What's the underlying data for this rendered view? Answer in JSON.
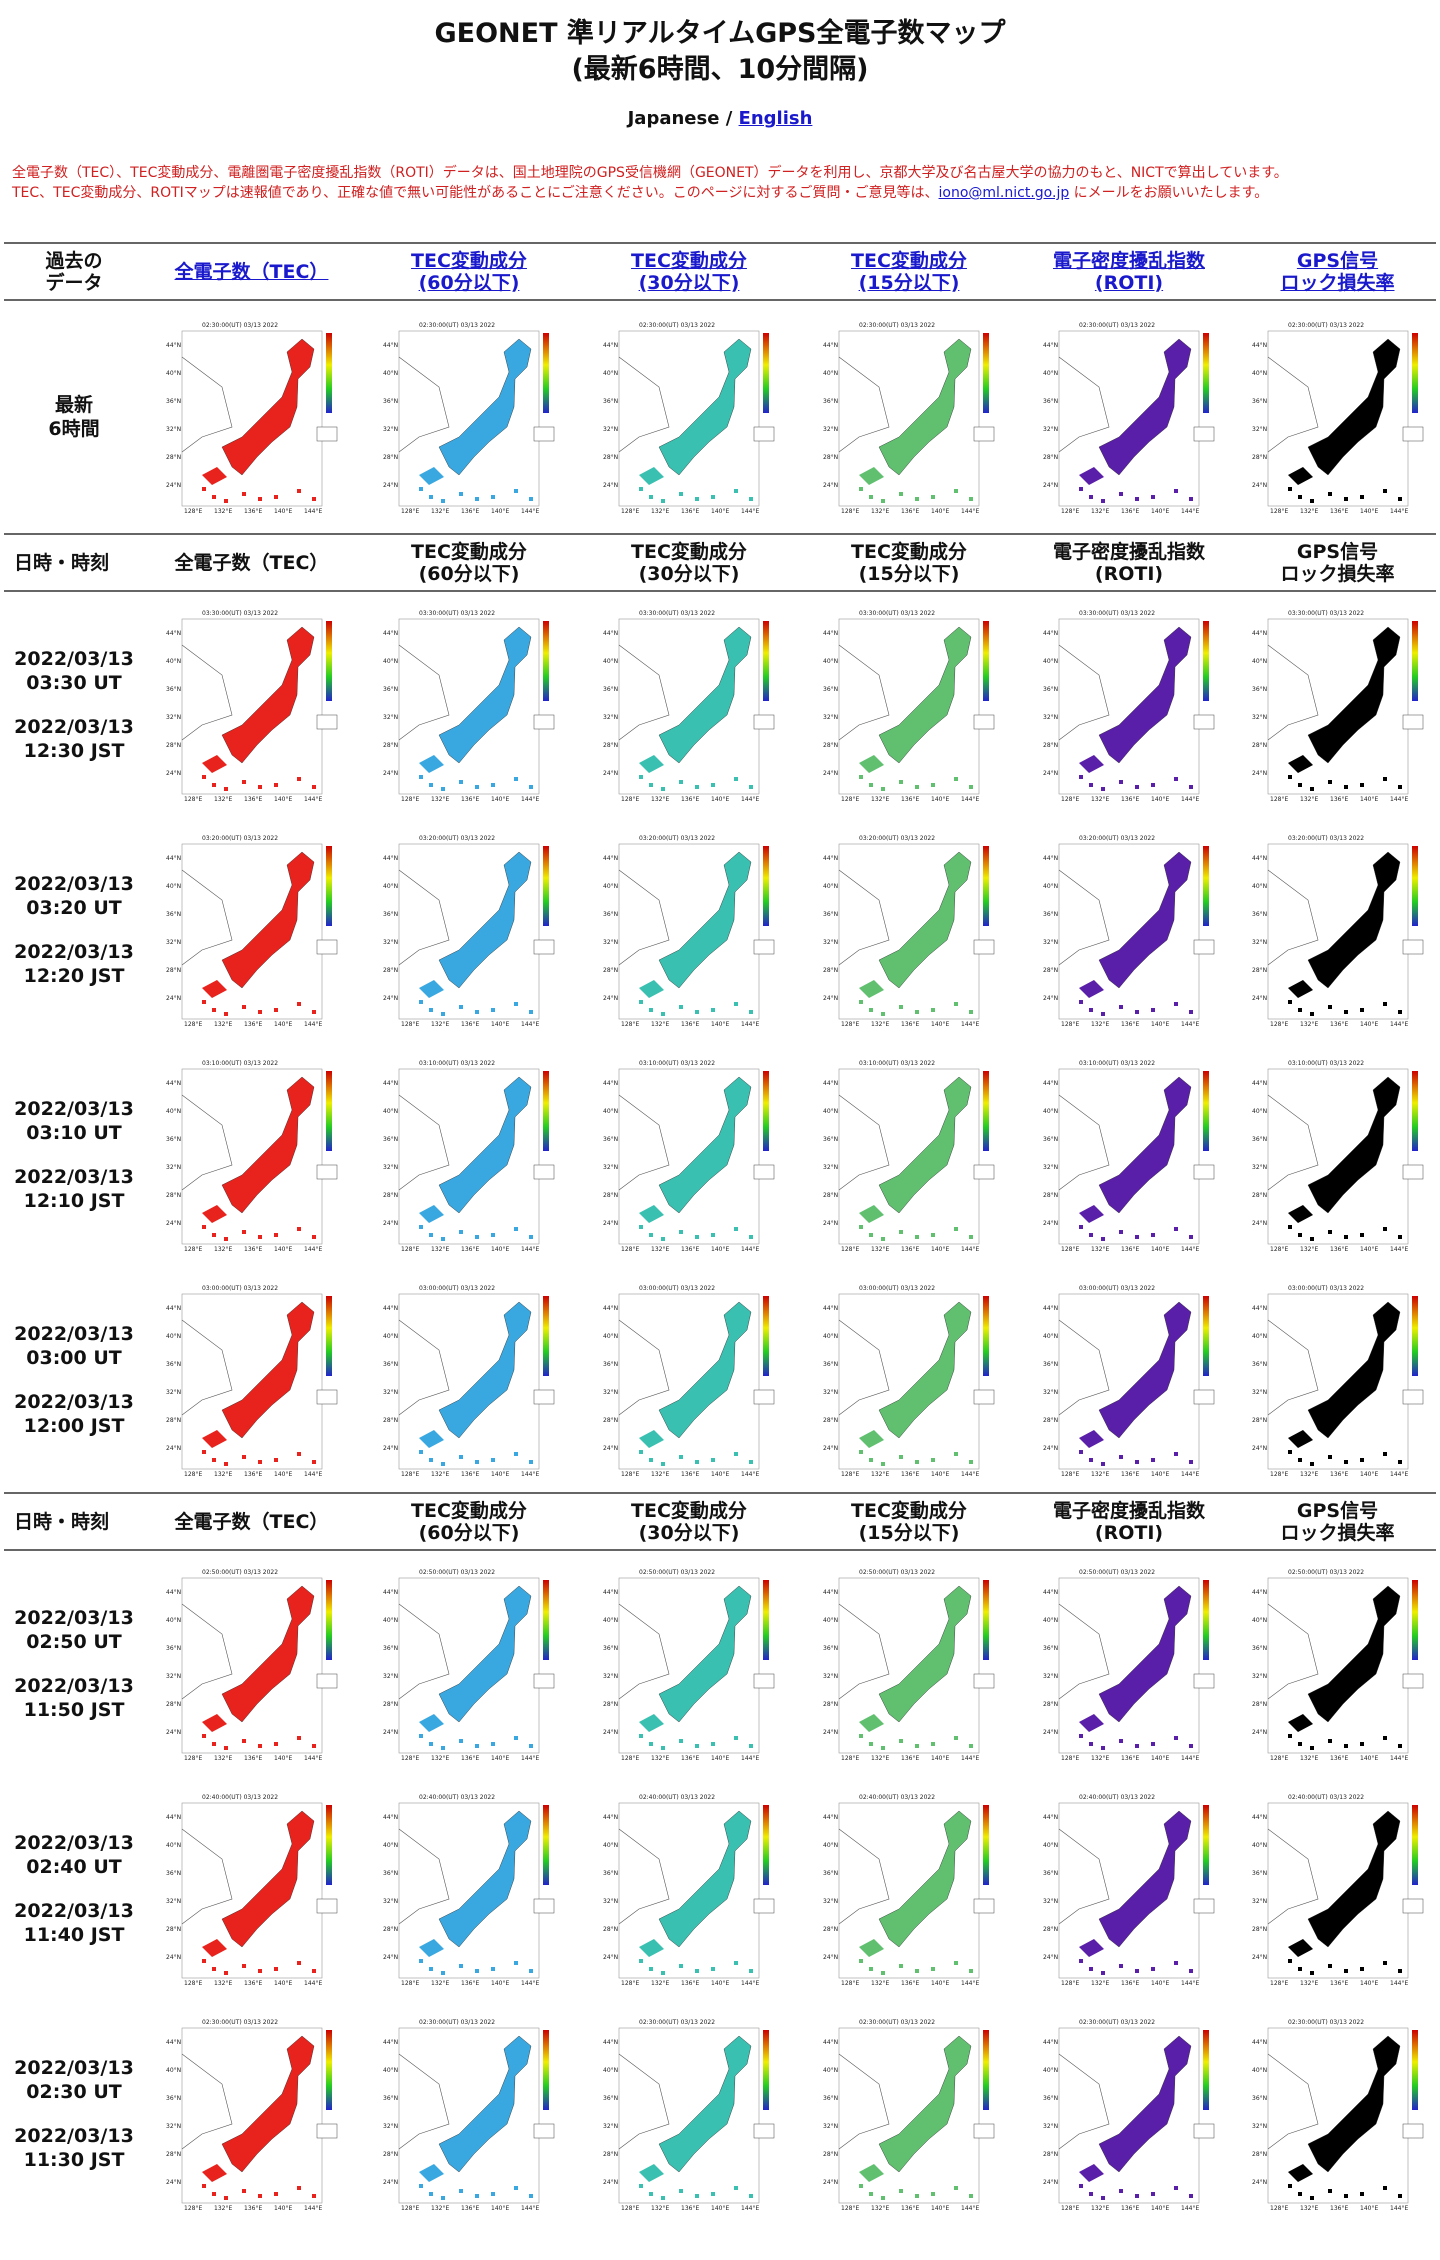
{
  "title_line1": "GEONET 準リアルタイムGPS全電子数マップ",
  "title_line2": "(最新6時間、10分間隔)",
  "lang": {
    "japanese": "Japanese",
    "sep": " / ",
    "english": "English"
  },
  "notice": {
    "line1": "全電子数（TEC）、TEC変動成分、電離圏電子密度擾乱指数（ROTI）データは、国土地理院のGPS受信機網（GEONET）データを利用し、京都大学及び名古屋大学の協力のもと、NICTで算出しています。",
    "line2a": "TEC、TEC変動成分、ROTIマップは速報値であり、正確な値で無い可能性があることにご注意ください。このページに対するご質問・ご意見等は、",
    "email": "iono@ml.nict.go.jp",
    "line2b": " にメールをお願いいたします。"
  },
  "top_header": {
    "past": "過去の\nデータ",
    "cols": [
      "全電子数（TEC）",
      "TEC変動成分\n(60分以下)",
      "TEC変動成分\n(30分以下)",
      "TEC変動成分\n(15分以下)",
      "電子密度擾乱指数\n(ROTI)",
      "GPS信号\nロック損失率"
    ]
  },
  "latest_label": "最新\n6時間",
  "row_header": {
    "datetime": "日時・時刻",
    "cols": [
      "全電子数（TEC）",
      "TEC変動成分\n(60分以下)",
      "TEC変動成分\n(30分以下)",
      "TEC変動成分\n(15分以下)",
      "電子密度擾乱指数\n(ROTI)",
      "GPS信号\nロック損失率"
    ]
  },
  "map_titles": [
    "02:30:00(UT) 03/13 2022",
    "03:30:00(UT) 03/13 2022",
    "03:20:00(UT) 03/13 2022",
    "03:10:00(UT) 03/13 2022",
    "03:00:00(UT) 03/13 2022",
    "02:50:00(UT) 03/13 2022",
    "02:40:00(UT) 03/13 2022",
    "02:30:00(UT) 03/13 2022"
  ],
  "rows": [
    {
      "date1": "2022/03/13",
      "ut": "03:30 UT",
      "date2": "2022/03/13",
      "jst": "12:30 JST"
    },
    {
      "date1": "2022/03/13",
      "ut": "03:20 UT",
      "date2": "2022/03/13",
      "jst": "12:20 JST"
    },
    {
      "date1": "2022/03/13",
      "ut": "03:10 UT",
      "date2": "2022/03/13",
      "jst": "12:10 JST"
    },
    {
      "date1": "2022/03/13",
      "ut": "03:00 UT",
      "date2": "2022/03/13",
      "jst": "12:00 JST"
    },
    {
      "date1": "2022/03/13",
      "ut": "02:50 UT",
      "date2": "2022/03/13",
      "jst": "11:50 JST"
    },
    {
      "date1": "2022/03/13",
      "ut": "02:40 UT",
      "date2": "2022/03/13",
      "jst": "11:40 JST"
    },
    {
      "date1": "2022/03/13",
      "ut": "02:30 UT",
      "date2": "2022/03/13",
      "jst": "11:30 JST"
    }
  ],
  "map_colors": [
    "#e8221c",
    "#3aa8e0",
    "#39c0b0",
    "#60c070",
    "#5a1fa8",
    "#000000"
  ],
  "lat_labels": [
    "44°N",
    "40°N",
    "36°N",
    "32°N",
    "28°N",
    "24°N"
  ],
  "lon_labels": [
    "128°E",
    "132°E",
    "136°E",
    "140°E",
    "144°E"
  ]
}
